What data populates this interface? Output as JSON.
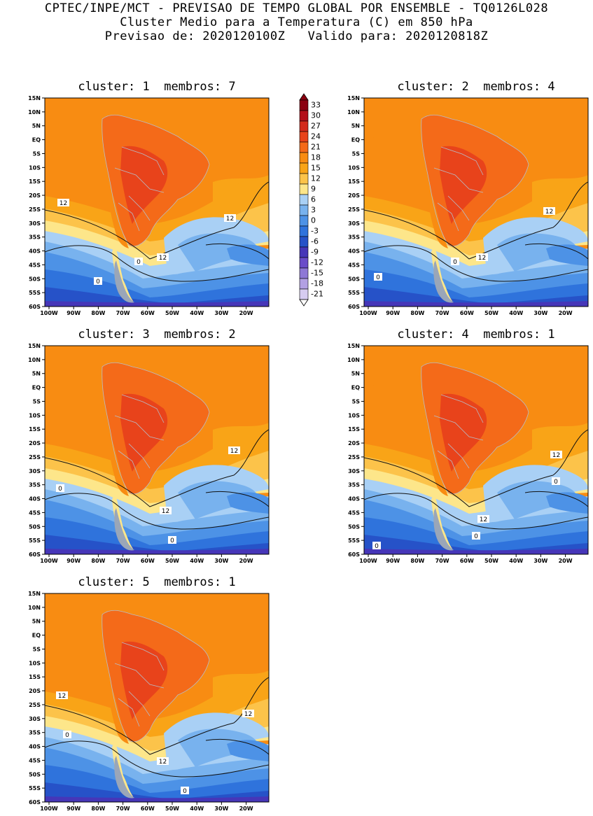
{
  "header": {
    "line1": "CPTEC/INPE/MCT - PREVISAO DE TEMPO GLOBAL POR ENSEMBLE - TQ0126L028",
    "line2": "Cluster Medio para a Temperatura (C) em 850 hPa",
    "line3": "Previsao de: 2020120100Z   Valido para: 2020120818Z"
  },
  "panels": [
    {
      "title": "cluster: 1  membros: 7",
      "contour_labels": [
        "12",
        "12",
        "12",
        "0",
        "0"
      ]
    },
    {
      "title": "cluster: 2  membros: 4",
      "contour_labels": [
        "12",
        "12",
        "0",
        "0"
      ]
    },
    {
      "title": "cluster: 3  membros: 2",
      "contour_labels": [
        "12",
        "12",
        "0",
        "0"
      ]
    },
    {
      "title": "cluster: 4  membros: 1",
      "contour_labels": [
        "12",
        "12",
        "0",
        "0",
        "0"
      ]
    },
    {
      "title": "cluster: 5  membros: 1",
      "contour_labels": [
        "12",
        "12",
        "12",
        "0",
        "0"
      ]
    }
  ],
  "lat_ticks": [
    "15N",
    "10N",
    "5N",
    "EQ",
    "5S",
    "10S",
    "15S",
    "20S",
    "25S",
    "30S",
    "35S",
    "40S",
    "45S",
    "50S",
    "55S",
    "60S"
  ],
  "lon_ticks": [
    "100W",
    "90W",
    "80W",
    "70W",
    "60W",
    "50W",
    "40W",
    "30W",
    "20W"
  ],
  "colorbar": {
    "levels": [
      "33",
      "30",
      "27",
      "24",
      "21",
      "18",
      "15",
      "12",
      "9",
      "6",
      "3",
      "0",
      "-3",
      "-6",
      "-9",
      "-12",
      "-15",
      "-18",
      "-21"
    ],
    "colors": [
      "#8b0010",
      "#b30f1a",
      "#d32a1c",
      "#e8431b",
      "#f46a19",
      "#f88c12",
      "#f9a417",
      "#fcc34a",
      "#fde68a",
      "#a9d0f5",
      "#78b2ee",
      "#4d92e6",
      "#2f73dc",
      "#2652c8",
      "#4636b8",
      "#6a4cc9",
      "#8e78d6",
      "#b2a0e3",
      "#d6ccf1"
    ]
  }
}
